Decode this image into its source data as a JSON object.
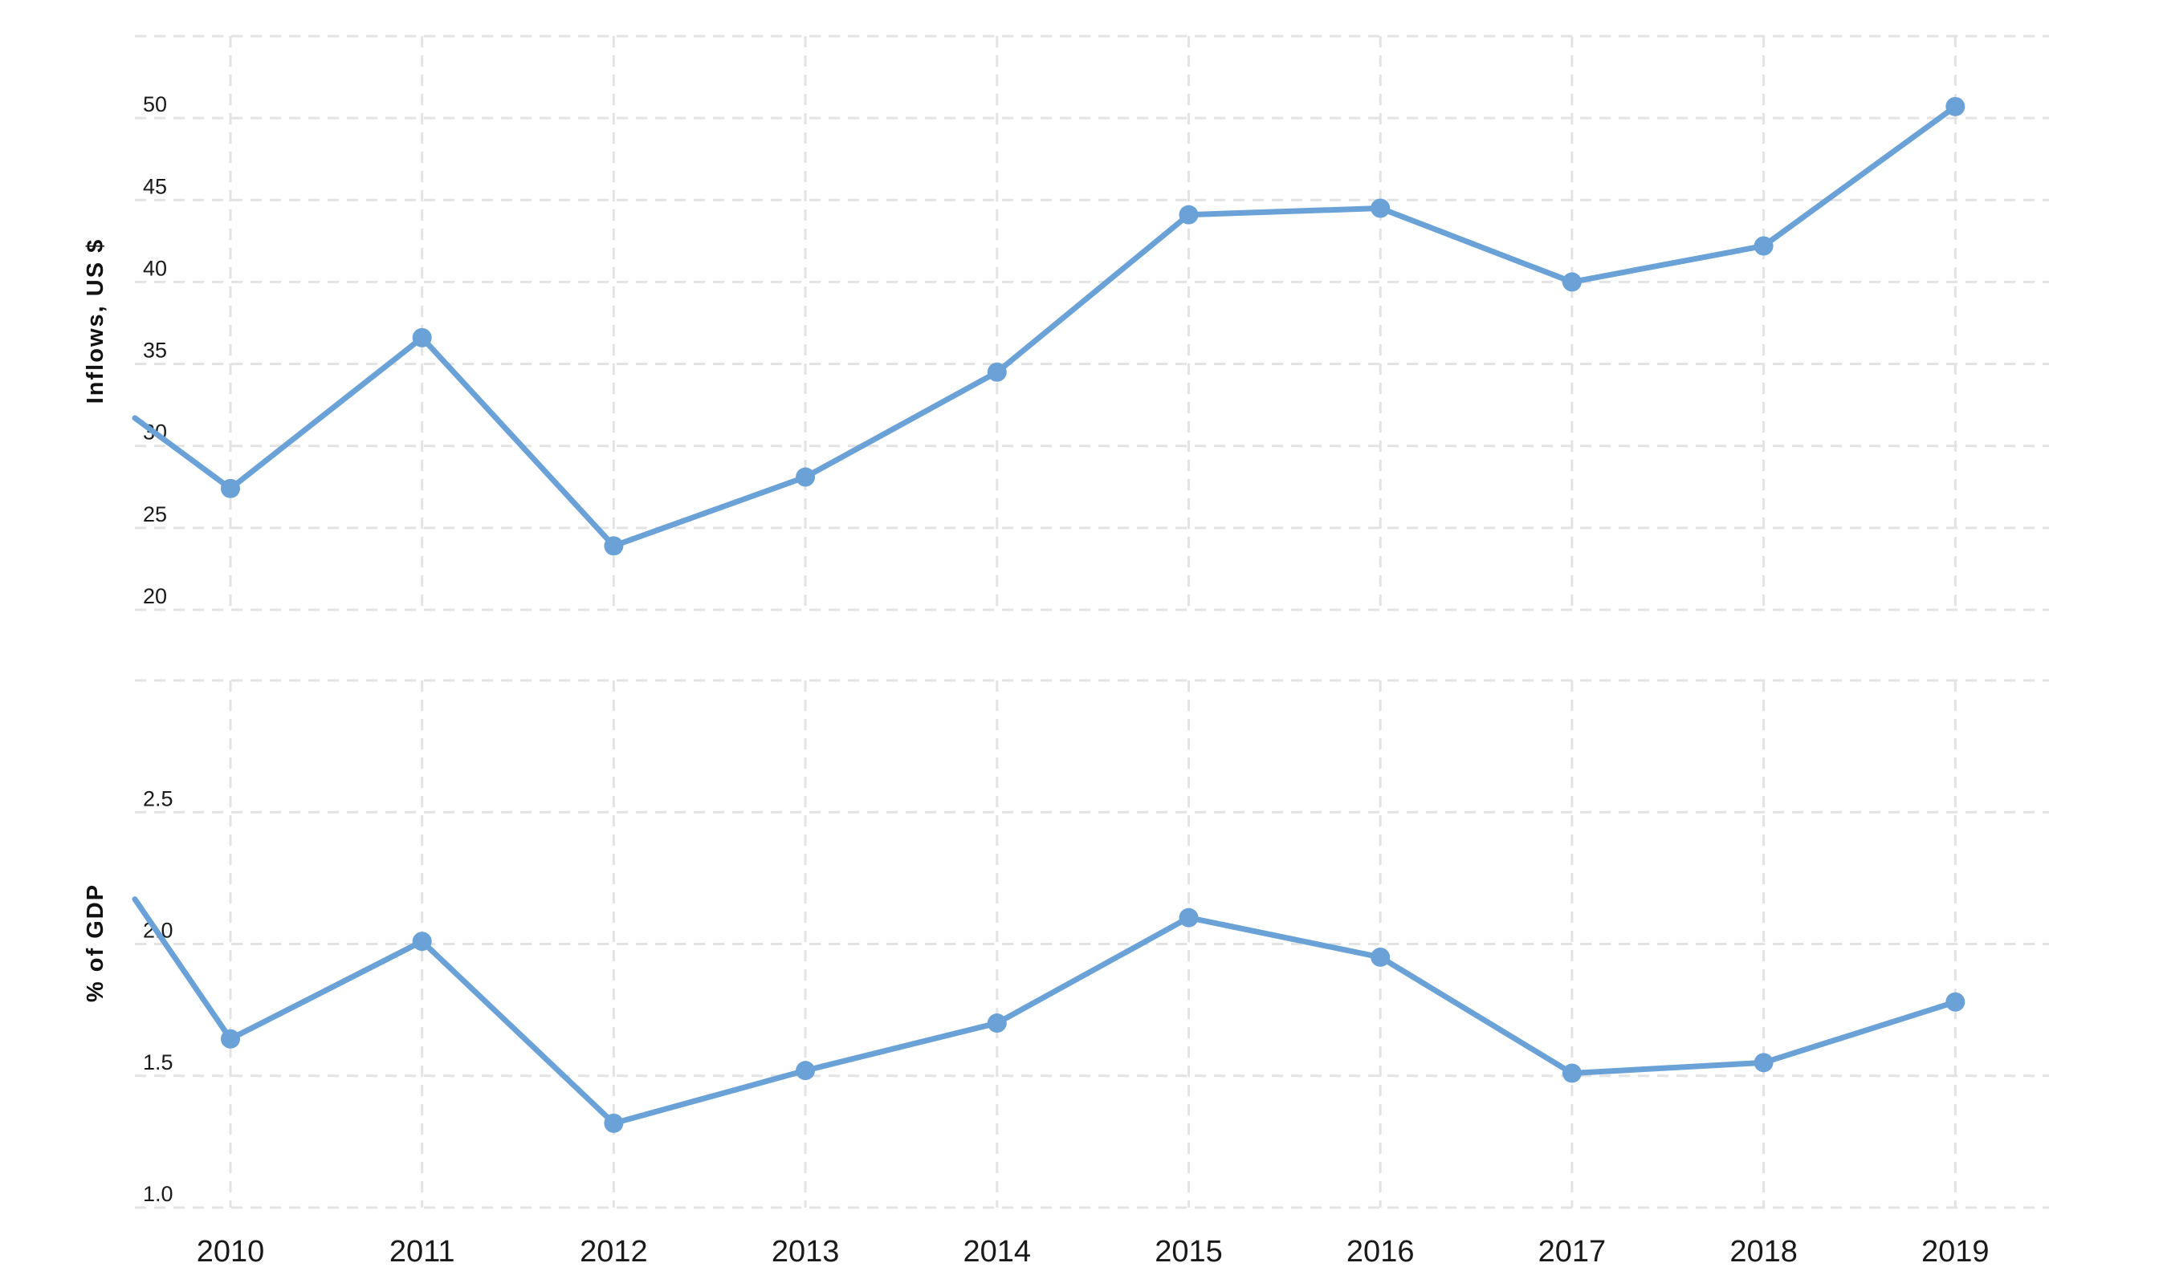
{
  "chart_data": [
    {
      "type": "line",
      "ylabel": "Inflows, US $",
      "xlabel": "",
      "ylim": [
        20,
        55
      ],
      "yticks": [
        20,
        25,
        30,
        35,
        40,
        45,
        50
      ],
      "grid": true,
      "series": [
        {
          "color": "#6aa2d8",
          "points": [
            {
              "x": 2009.5,
              "y": 31.7
            },
            {
              "x": 2010,
              "y": 27.4
            },
            {
              "x": 2011,
              "y": 36.6
            },
            {
              "x": 2012,
              "y": 23.9
            },
            {
              "x": 2013,
              "y": 28.1
            },
            {
              "x": 2014,
              "y": 34.5
            },
            {
              "x": 2015,
              "y": 44.1
            },
            {
              "x": 2016,
              "y": 44.5
            },
            {
              "x": 2017,
              "y": 40.0
            },
            {
              "x": 2018,
              "y": 42.2
            },
            {
              "x": 2019,
              "y": 50.7
            }
          ]
        }
      ]
    },
    {
      "type": "line",
      "ylabel": "% of GDP",
      "xlabel": "",
      "ylim": [
        1.0,
        3.0
      ],
      "yticks": [
        1.0,
        1.5,
        2.0,
        2.5
      ],
      "ytick_labels": [
        "1.0",
        "1.5",
        "2.0",
        "2.5"
      ],
      "grid": true,
      "series": [
        {
          "color": "#6aa2d8",
          "points": [
            {
              "x": 2009.5,
              "y": 2.17
            },
            {
              "x": 2010,
              "y": 1.64
            },
            {
              "x": 2011,
              "y": 2.01
            },
            {
              "x": 2012,
              "y": 1.32
            },
            {
              "x": 2013,
              "y": 1.52
            },
            {
              "x": 2014,
              "y": 1.7
            },
            {
              "x": 2015,
              "y": 2.1
            },
            {
              "x": 2016,
              "y": 1.95
            },
            {
              "x": 2017,
              "y": 1.51
            },
            {
              "x": 2018,
              "y": 1.55
            },
            {
              "x": 2019,
              "y": 1.78
            }
          ]
        }
      ]
    }
  ],
  "x_axis": {
    "categories": [
      "2010",
      "2011",
      "2012",
      "2013",
      "2014",
      "2015",
      "2016",
      "2017",
      "2018",
      "2019"
    ]
  }
}
